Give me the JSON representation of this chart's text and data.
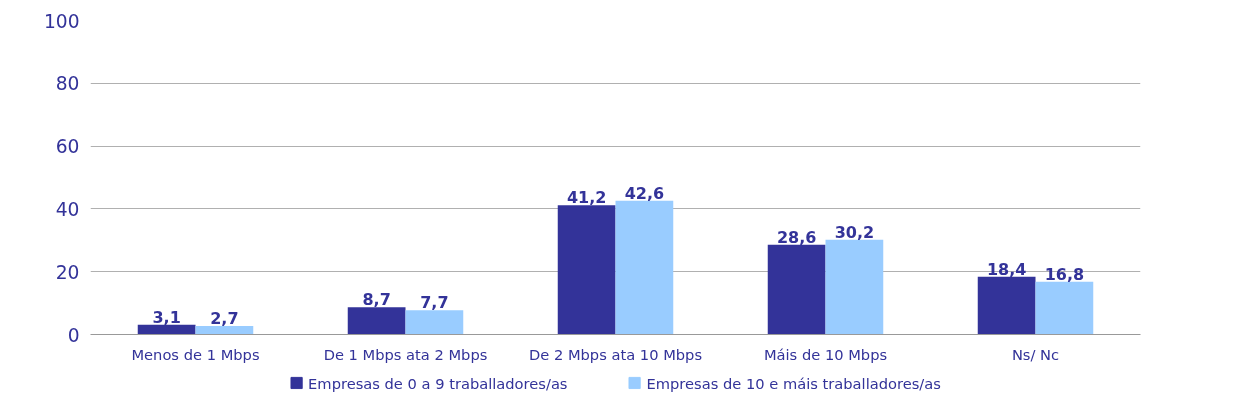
{
  "chart_data": {
    "type": "bar",
    "categories": [
      "Menos de 1 Mbps",
      "De 1 Mbps ata 2 Mbps",
      "De 2 Mbps ata 10 Mbps",
      "Máis de 10 Mbps",
      "Ns/ Nc"
    ],
    "series": [
      {
        "name": "Empresas de 0 a 9 traballadores/as",
        "color": "#333399",
        "values": [
          3.1,
          8.7,
          41.2,
          28.6,
          18.4
        ],
        "value_labels": [
          "3,1",
          "8,7",
          "41,2",
          "28,6",
          "18,4"
        ]
      },
      {
        "name": "Empresas de 10 e máis traballadores/as",
        "color": "#99ccff",
        "values": [
          2.7,
          7.7,
          42.6,
          30.2,
          16.8
        ],
        "value_labels": [
          "2,7",
          "7,7",
          "42,6",
          "30,2",
          "16,8"
        ]
      }
    ],
    "ylim": [
      0,
      100
    ],
    "yticks": [
      0,
      20,
      40,
      60,
      80,
      100
    ],
    "grid": "y",
    "legend": "bottom"
  }
}
